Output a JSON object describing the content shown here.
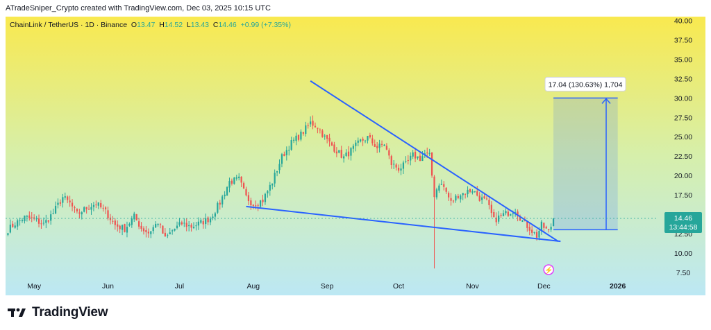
{
  "header": {
    "credit": "ATradeSniper_Crypto created with TradingView.com, Dec 03, 2025 10:15 UTC"
  },
  "footer": {
    "brand": "TradingView"
  },
  "legend": {
    "symbol": "ChainLink / TetherUS · 1D · Binance",
    "o_label": "O",
    "o_value": "13.47",
    "h_label": "H",
    "h_value": "14.52",
    "l_label": "L",
    "l_value": "13.43",
    "c_label": "C",
    "c_value": "14.46",
    "change": "+0.99 (+7.35%)"
  },
  "colors": {
    "up": "#26a69a",
    "down": "#ef5350",
    "line": "#2962ff",
    "price": "#26a69a",
    "grad_top": "#f9e94f",
    "grad_mid": "#d6efab",
    "grad_bottom": "#bce8f4"
  },
  "chart_data": {
    "type": "candlestick",
    "title": "ChainLink / TetherUS · 1D · Binance",
    "ylim": [
      6.5,
      40.5
    ],
    "y_ticks": [
      "40.00",
      "37.50",
      "35.00",
      "32.50",
      "30.00",
      "27.50",
      "25.00",
      "22.50",
      "20.00",
      "17.50",
      "12.50",
      "10.00",
      "7.50"
    ],
    "x_ticks": [
      "May",
      "Jun",
      "Jul",
      "Aug",
      "Sep",
      "Oct",
      "Nov",
      "Dec",
      "2026"
    ],
    "x_tick_days": [
      0,
      31,
      61,
      92,
      123,
      153,
      184,
      214,
      245
    ],
    "xlim": [
      -12,
      262
    ],
    "price_key_points": [
      [
        -11,
        13.0
      ],
      [
        -8,
        13.8
      ],
      [
        -4,
        14.6
      ],
      [
        0,
        14.3
      ],
      [
        4,
        13.7
      ],
      [
        8,
        15.2
      ],
      [
        12,
        17.2
      ],
      [
        15,
        16.4
      ],
      [
        18,
        15.0
      ],
      [
        22,
        15.8
      ],
      [
        26,
        16.4
      ],
      [
        30,
        15.3
      ],
      [
        34,
        13.6
      ],
      [
        38,
        13.1
      ],
      [
        42,
        14.7
      ],
      [
        45,
        13.2
      ],
      [
        48,
        12.6
      ],
      [
        52,
        14.0
      ],
      [
        55,
        11.8
      ],
      [
        58,
        12.9
      ],
      [
        62,
        13.8
      ],
      [
        66,
        13.4
      ],
      [
        70,
        13.9
      ],
      [
        74,
        14.5
      ],
      [
        78,
        16.5
      ],
      [
        82,
        19.2
      ],
      [
        86,
        19.5
      ],
      [
        89,
        17.2
      ],
      [
        92,
        16.3
      ],
      [
        96,
        16.8
      ],
      [
        100,
        19.2
      ],
      [
        104,
        22.4
      ],
      [
        108,
        24.2
      ],
      [
        112,
        25.3
      ],
      [
        116,
        26.8
      ],
      [
        119,
        26.3
      ],
      [
        122,
        24.9
      ],
      [
        126,
        23.5
      ],
      [
        130,
        22.3
      ],
      [
        134,
        23.5
      ],
      [
        137,
        24.4
      ],
      [
        140,
        24.9
      ],
      [
        144,
        23.6
      ],
      [
        147,
        24.1
      ],
      [
        150,
        21.5
      ],
      [
        153,
        20.9
      ],
      [
        156,
        21.4
      ],
      [
        159,
        22.6
      ],
      [
        162,
        22.2
      ],
      [
        164,
        22.8
      ],
      [
        166,
        22.5
      ],
      [
        168,
        17.5
      ],
      [
        170,
        19.0
      ],
      [
        172,
        18.5
      ],
      [
        175,
        16.5
      ],
      [
        178,
        17.5
      ],
      [
        181,
        17.8
      ],
      [
        184,
        18.2
      ],
      [
        187,
        17.1
      ],
      [
        190,
        16.6
      ],
      [
        193,
        14.2
      ],
      [
        196,
        14.8
      ],
      [
        199,
        15.2
      ],
      [
        202,
        15.6
      ],
      [
        205,
        14.1
      ],
      [
        208,
        13.2
      ],
      [
        211,
        12.2
      ],
      [
        213,
        13.6
      ],
      [
        215,
        13.0
      ],
      [
        216,
        12.7
      ],
      [
        217,
        13.47
      ],
      [
        218,
        14.46
      ]
    ],
    "candle_overrides": {
      "168": {
        "low": 8.0
      },
      "218": {
        "open": 13.47,
        "high": 14.52,
        "low": 13.43,
        "close": 14.46
      }
    },
    "trendlines": [
      {
        "name": "upper-trendline",
        "from": [
          116,
          32.2
        ],
        "to": [
          220,
          11.5
        ]
      },
      {
        "name": "lower-trendline",
        "from": [
          89,
          16.0
        ],
        "to": [
          221,
          11.5
        ]
      }
    ],
    "projection": {
      "entry": 13.0,
      "target": 30.0,
      "from_day": 218,
      "to_day": 245,
      "label": "17.04 (130.63%) 1,704"
    },
    "current_price": {
      "value": "14.46",
      "countdown": "13:44:58",
      "hidden_tick": "15.00"
    }
  }
}
